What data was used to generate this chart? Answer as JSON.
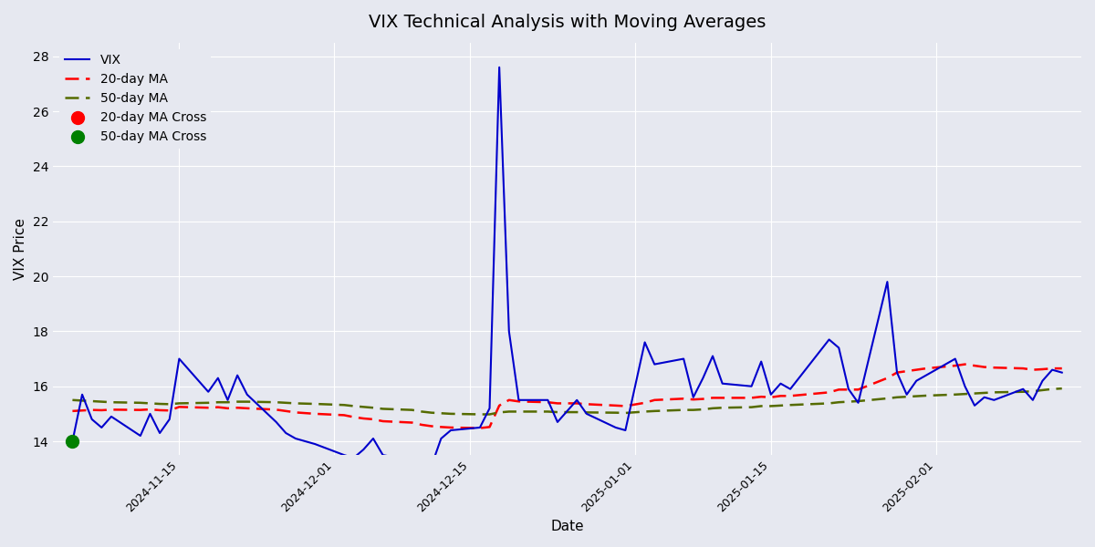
{
  "title": "VIX Technical Analysis with Moving Averages",
  "xlabel": "Date",
  "ylabel": "VIX Price",
  "background_color": "#e6e8f0",
  "plot_background": "#e6e8f0",
  "vix_color": "#0000cc",
  "ma20_color": "#ff0000",
  "ma50_color": "#556b00",
  "cross20_color": "#ff0000",
  "cross50_color": "#008000",
  "ylim": [
    13.5,
    28.5
  ],
  "dates": [
    "2024-11-04",
    "2024-11-05",
    "2024-11-06",
    "2024-11-07",
    "2024-11-08",
    "2024-11-11",
    "2024-11-12",
    "2024-11-13",
    "2024-11-14",
    "2024-11-15",
    "2024-11-18",
    "2024-11-19",
    "2024-11-20",
    "2024-11-21",
    "2024-11-22",
    "2024-11-25",
    "2024-11-26",
    "2024-11-27",
    "2024-11-29",
    "2024-12-02",
    "2024-12-03",
    "2024-12-04",
    "2024-12-05",
    "2024-12-06",
    "2024-12-09",
    "2024-12-10",
    "2024-12-11",
    "2024-12-12",
    "2024-12-13",
    "2024-12-16",
    "2024-12-17",
    "2024-12-18",
    "2024-12-19",
    "2024-12-20",
    "2024-12-23",
    "2024-12-24",
    "2024-12-26",
    "2024-12-27",
    "2024-12-30",
    "2024-12-31",
    "2025-01-02",
    "2025-01-03",
    "2025-01-06",
    "2025-01-07",
    "2025-01-08",
    "2025-01-09",
    "2025-01-10",
    "2025-01-13",
    "2025-01-14",
    "2025-01-15",
    "2025-01-16",
    "2025-01-17",
    "2025-01-21",
    "2025-01-22",
    "2025-01-23",
    "2025-01-24",
    "2025-01-27",
    "2025-01-28",
    "2025-01-29",
    "2025-01-30",
    "2025-01-31",
    "2025-02-03",
    "2025-02-04",
    "2025-02-05",
    "2025-02-06",
    "2025-02-07",
    "2025-02-10",
    "2025-02-11",
    "2025-02-12",
    "2025-02-13",
    "2025-02-14"
  ],
  "vix": [
    14.0,
    15.7,
    14.8,
    14.5,
    14.9,
    14.2,
    15.0,
    14.3,
    14.8,
    17.0,
    15.8,
    16.3,
    15.5,
    16.4,
    15.7,
    14.7,
    14.3,
    14.1,
    13.9,
    13.5,
    13.4,
    13.7,
    14.1,
    13.5,
    13.3,
    12.8,
    13.1,
    14.1,
    14.4,
    14.5,
    15.2,
    27.6,
    18.0,
    15.5,
    15.5,
    14.7,
    15.5,
    15.0,
    14.5,
    14.4,
    17.6,
    16.8,
    17.0,
    15.6,
    16.3,
    17.1,
    16.1,
    16.0,
    16.9,
    15.7,
    16.1,
    15.9,
    17.7,
    17.4,
    15.9,
    15.4,
    19.8,
    16.5,
    15.7,
    16.2,
    16.4,
    17.0,
    16.0,
    15.3,
    15.6,
    15.5,
    15.9,
    15.5,
    16.2,
    16.6,
    16.5
  ],
  "ma20": [
    15.1,
    15.12,
    15.14,
    15.13,
    15.15,
    15.14,
    15.16,
    15.13,
    15.12,
    15.25,
    15.22,
    15.24,
    15.2,
    15.22,
    15.2,
    15.15,
    15.1,
    15.05,
    15.0,
    14.95,
    14.88,
    14.83,
    14.8,
    14.73,
    14.68,
    14.6,
    14.55,
    14.52,
    14.5,
    14.48,
    14.52,
    15.3,
    15.5,
    15.45,
    15.42,
    15.38,
    15.38,
    15.35,
    15.3,
    15.28,
    15.4,
    15.5,
    15.55,
    15.52,
    15.54,
    15.58,
    15.58,
    15.58,
    15.62,
    15.6,
    15.65,
    15.65,
    15.78,
    15.88,
    15.88,
    15.88,
    16.3,
    16.5,
    16.55,
    16.6,
    16.65,
    16.75,
    16.8,
    16.75,
    16.7,
    16.68,
    16.65,
    16.6,
    16.62,
    16.65,
    16.65
  ],
  "ma50": [
    15.5,
    15.48,
    15.46,
    15.44,
    15.42,
    15.4,
    15.38,
    15.36,
    15.35,
    15.38,
    15.4,
    15.42,
    15.42,
    15.44,
    15.44,
    15.42,
    15.4,
    15.38,
    15.36,
    15.32,
    15.28,
    15.25,
    15.22,
    15.18,
    15.14,
    15.08,
    15.04,
    15.02,
    15.0,
    14.98,
    14.98,
    15.05,
    15.08,
    15.08,
    15.08,
    15.06,
    15.06,
    15.05,
    15.04,
    15.03,
    15.08,
    15.1,
    15.14,
    15.14,
    15.16,
    15.2,
    15.22,
    15.24,
    15.28,
    15.28,
    15.3,
    15.32,
    15.38,
    15.42,
    15.44,
    15.46,
    15.56,
    15.6,
    15.62,
    15.64,
    15.66,
    15.7,
    15.72,
    15.74,
    15.76,
    15.78,
    15.8,
    15.82,
    15.86,
    15.9,
    15.92
  ],
  "cross50_date": "2024-11-04",
  "cross50_value": 14.0
}
